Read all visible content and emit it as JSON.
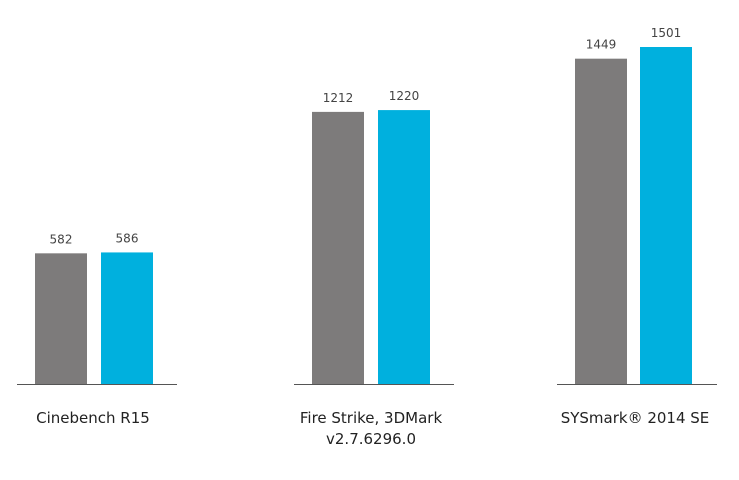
{
  "chart_data": {
    "type": "bar",
    "categories": [
      [
        "Cinebench R15"
      ],
      [
        "Fire Strike, 3DMark",
        "v2.7.6296.0"
      ],
      [
        "SYSmark® 2014 SE"
      ]
    ],
    "series": [
      {
        "values": [
          582,
          1212,
          1449
        ],
        "color": "#7d7b7b"
      },
      {
        "values": [
          586,
          1220,
          1501
        ],
        "color": "#00b0de"
      }
    ],
    "data_labels": [
      [
        "582",
        "1212",
        "1449"
      ],
      [
        "586",
        "1220",
        "1501"
      ]
    ],
    "axis_color": "#555555",
    "group_axis_segments": true
  }
}
